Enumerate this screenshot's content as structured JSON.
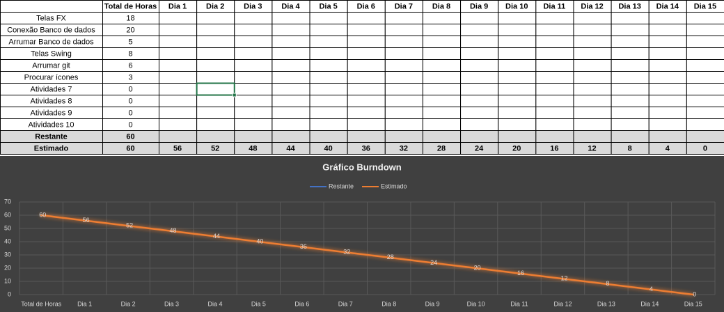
{
  "table": {
    "columns": [
      "Total de Horas",
      "Dia 1",
      "Dia 2",
      "Dia 3",
      "Dia 4",
      "Dia 5",
      "Dia 6",
      "Dia 7",
      "Dia 8",
      "Dia 9",
      "Dia 10",
      "Dia 11",
      "Dia 12",
      "Dia 13",
      "Dia 14",
      "Dia 15"
    ],
    "rows": [
      {
        "label": "Telas FX",
        "cells": [
          18
        ]
      },
      {
        "label": "Conexão Banco de dados",
        "cells": [
          20
        ]
      },
      {
        "label": "Arrumar Banco de dados",
        "cells": [
          5
        ]
      },
      {
        "label": "Telas Swing",
        "cells": [
          8
        ]
      },
      {
        "label": "Arrumar git",
        "cells": [
          6
        ]
      },
      {
        "label": "Procurar ícones",
        "cells": [
          3
        ]
      },
      {
        "label": "Atividades 7",
        "cells": [
          0
        ]
      },
      {
        "label": "Atividades 8",
        "cells": [
          0
        ]
      },
      {
        "label": "Atividades 9",
        "cells": [
          0
        ]
      },
      {
        "label": "Atividades 10",
        "cells": [
          0
        ]
      }
    ],
    "summary_rows": [
      {
        "label": "Restante",
        "cells": [
          60
        ]
      },
      {
        "label": "Estimado",
        "cells": [
          60,
          56,
          52,
          48,
          44,
          40,
          36,
          32,
          28,
          24,
          20,
          16,
          12,
          8,
          4,
          0
        ]
      }
    ]
  },
  "chart_data": {
    "type": "line",
    "title": "Gráfico Burndown",
    "categories": [
      "Total de Horas",
      "Dia 1",
      "Dia 2",
      "Dia 3",
      "Dia 4",
      "Dia 5",
      "Dia 6",
      "Dia 7",
      "Dia 8",
      "Dia 9",
      "Dia 10",
      "Dia 11",
      "Dia 12",
      "Dia 13",
      "Dia 14",
      "Dia 15"
    ],
    "series": [
      {
        "name": "Restante",
        "color": "#4472c4",
        "values": [
          60,
          null,
          null,
          null,
          null,
          null,
          null,
          null,
          null,
          null,
          null,
          null,
          null,
          null,
          null,
          null
        ]
      },
      {
        "name": "Estimado",
        "color": "#ed7d31",
        "values": [
          60,
          56,
          52,
          48,
          44,
          40,
          36,
          32,
          28,
          24,
          20,
          16,
          12,
          8,
          4,
          0
        ],
        "data_labels": true
      }
    ],
    "ylim": [
      0,
      70
    ],
    "yticks": [
      0,
      10,
      20,
      30,
      40,
      50,
      60,
      70
    ],
    "grid": true,
    "legend": "top"
  }
}
